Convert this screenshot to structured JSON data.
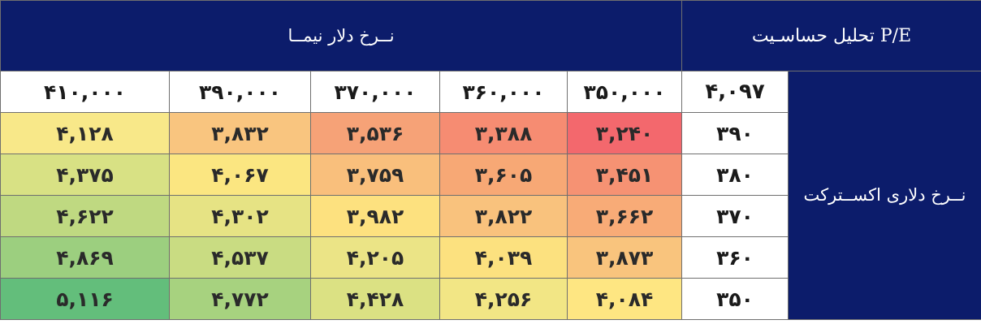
{
  "header": {
    "sensitivity_title": "تحلیل حساسـیت P/E",
    "nima_title": "نــرخ دلار نیمــا"
  },
  "side_label": "نــرخ دلاری اکســترکت",
  "base_value": "۴,۰۹۷",
  "nima_rates": [
    "۴۱۰,۰۰۰",
    "۳۹۰,۰۰۰",
    "۳۷۰,۰۰۰",
    "۳۶۰,۰۰۰",
    "۳۵۰,۰۰۰"
  ],
  "rows": [
    {
      "rate": "۳۹۰",
      "values": [
        "۴,۱۲۸",
        "۳,۸۳۲",
        "۳,۵۳۶",
        "۳,۳۸۸",
        "۳,۲۴۰"
      ]
    },
    {
      "rate": "۳۸۰",
      "values": [
        "۴,۳۷۵",
        "۴,۰۶۷",
        "۳,۷۵۹",
        "۳,۶۰۵",
        "۳,۴۵۱"
      ]
    },
    {
      "rate": "۳۷۰",
      "values": [
        "۴,۶۲۲",
        "۴,۳۰۲",
        "۳,۹۸۲",
        "۳,۸۲۲",
        "۳,۶۶۲"
      ]
    },
    {
      "rate": "۳۶۰",
      "values": [
        "۴,۸۶۹",
        "۴,۵۳۷",
        "۴,۲۰۵",
        "۴,۰۳۹",
        "۳,۸۷۳"
      ]
    },
    {
      "rate": "۳۵۰",
      "values": [
        "۵,۱۱۶",
        "۴,۷۷۲",
        "۴,۴۲۸",
        "۴,۲۵۶",
        "۴,۰۸۴"
      ]
    }
  ],
  "cell_colors": [
    [
      "#f8e889",
      "#f9c57f",
      "#f6a277",
      "#f68c72",
      "#f3686d"
    ],
    [
      "#d8e184",
      "#fbe681",
      "#f9bf7c",
      "#f7a875",
      "#f69273"
    ],
    [
      "#bfd981",
      "#e6e384",
      "#fde17f",
      "#f9c27d",
      "#f8ab77"
    ],
    [
      "#9ccf7f",
      "#c9dc82",
      "#ebe486",
      "#fce17f",
      "#f9c47d"
    ],
    [
      "#63be7b",
      "#a7d27f",
      "#dbe183",
      "#f2e685",
      "#fee682"
    ]
  ],
  "colors": {
    "header_bg": "#0c1c6b",
    "header_text": "#ffffff"
  }
}
